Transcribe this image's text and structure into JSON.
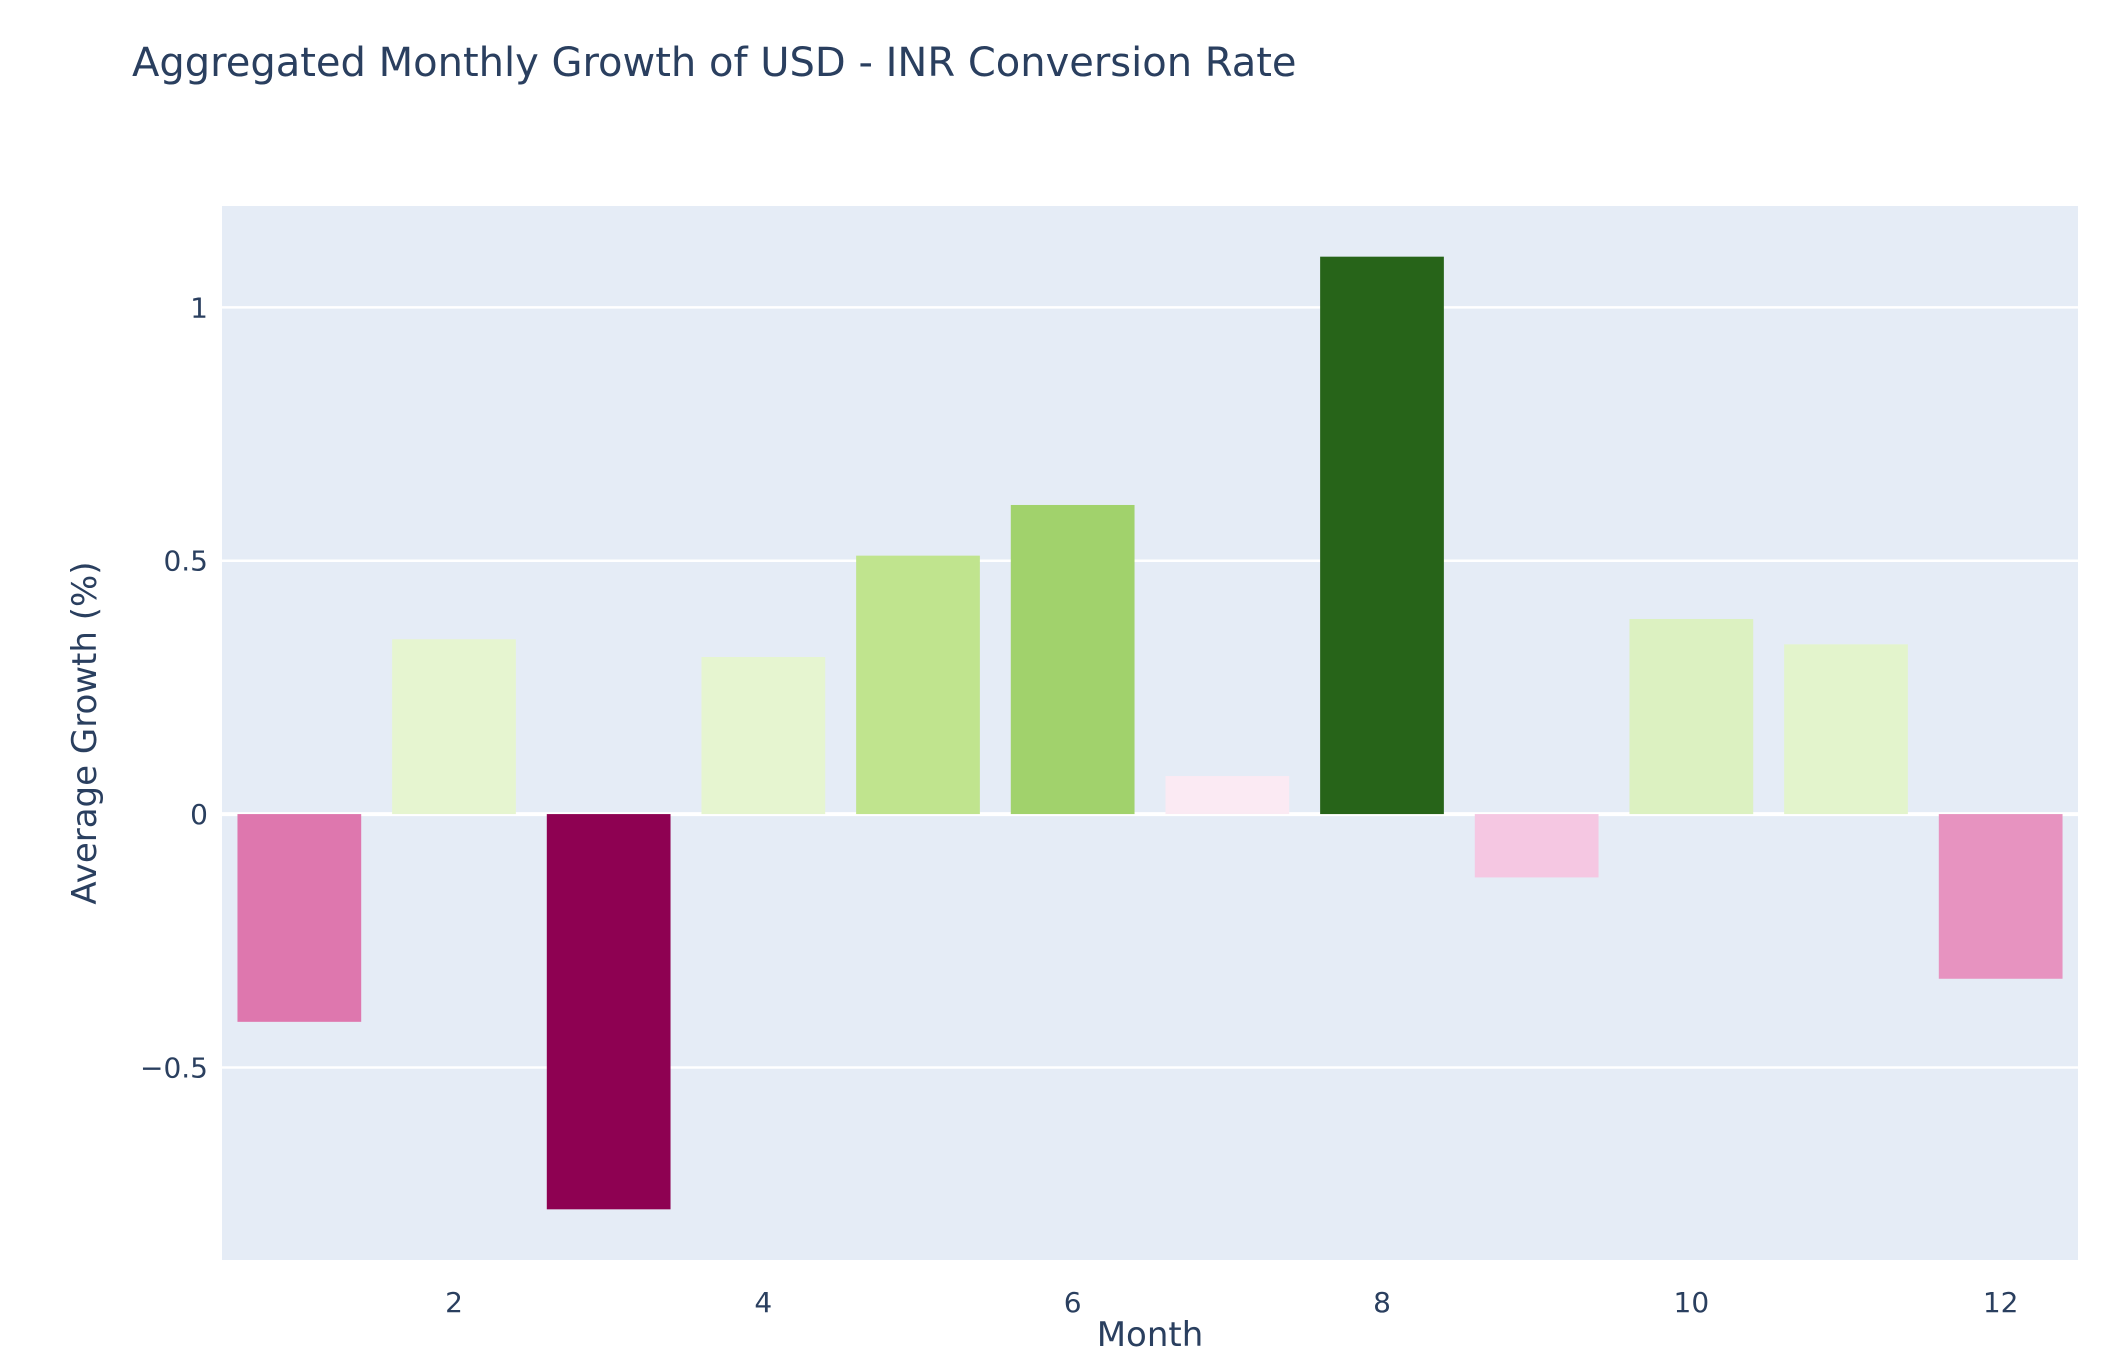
{
  "chart_data": {
    "type": "bar",
    "title": "Aggregated Monthly Growth of USD - INR Conversion Rate",
    "xlabel": "Month",
    "ylabel": "Average Growth (%)",
    "categories": [
      1,
      2,
      3,
      4,
      5,
      6,
      7,
      8,
      9,
      10,
      11,
      12
    ],
    "values": [
      -0.41,
      0.345,
      -0.78,
      0.31,
      0.51,
      0.61,
      0.075,
      1.1,
      -0.125,
      0.385,
      0.335,
      -0.325
    ],
    "colors": [
      "#de77ae",
      "#e6f5d0",
      "#8e0152",
      "#e6f5d0",
      "#c0e48e",
      "#a1d26c",
      "#fbeaf3",
      "#276419",
      "#f5c7e2",
      "#dcf1c1",
      "#e3f4cc",
      "#e793c0"
    ],
    "xlim": [
      0.5,
      12.5
    ],
    "ylim": [
      -0.88,
      1.2
    ],
    "x_ticks": [
      2,
      4,
      6,
      8,
      10,
      12
    ],
    "x_tick_labels": [
      "2",
      "4",
      "6",
      "8",
      "10",
      "12"
    ],
    "y_ticks": [
      -0.5,
      0,
      0.5,
      1
    ],
    "y_tick_labels": [
      "−0.5",
      "0",
      "0.5",
      "1"
    ],
    "grid": true,
    "legend": "none",
    "plot_background": "#e5ecf6",
    "text_color": "#2a3f5f"
  }
}
